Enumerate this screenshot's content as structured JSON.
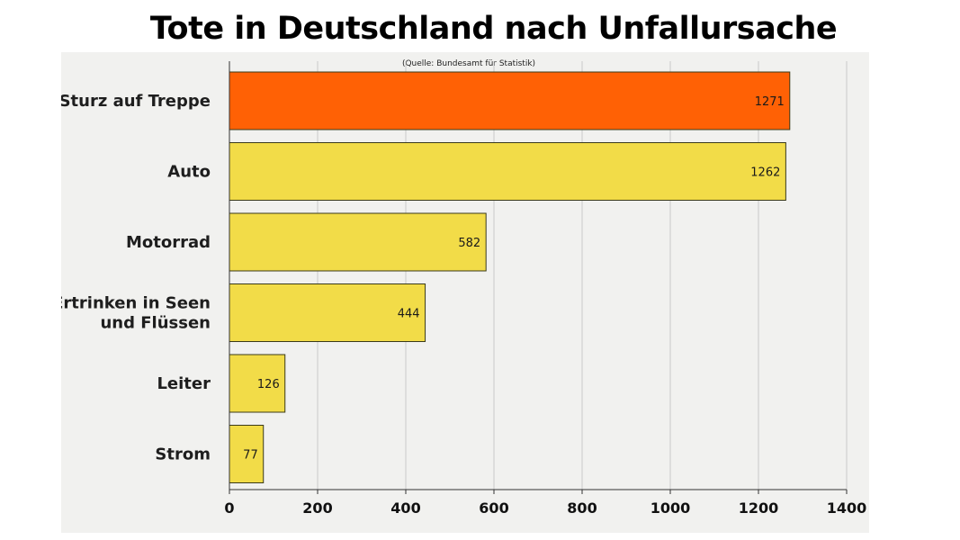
{
  "chart_data": {
    "type": "bar",
    "orientation": "horizontal",
    "title": "Tote in Deutschland nach Unfallursache",
    "subtitle": "(Quelle: Bundesamt für Statistik)",
    "categories": [
      [
        "Sturz auf Treppe"
      ],
      [
        "Auto"
      ],
      [
        "Motorrad"
      ],
      [
        "Ertrinken in Seen",
        "und Flüssen"
      ],
      [
        "Leiter"
      ],
      [
        "Strom"
      ]
    ],
    "values": [
      1271,
      1262,
      582,
      444,
      126,
      77
    ],
    "value_labels": [
      "1271",
      "1262",
      "582",
      "444",
      "126",
      "77"
    ],
    "xlim": [
      0,
      1400
    ],
    "xticks": [
      0,
      200,
      400,
      600,
      800,
      1000,
      1200,
      1400
    ],
    "grid": "vertical",
    "colors": {
      "highlight": "#ff6105",
      "default": "#f2dc48",
      "bar_border": "#3a3a1a",
      "grid": "#c9c9c9",
      "axis": "#333333"
    },
    "highlight_index": 0
  }
}
